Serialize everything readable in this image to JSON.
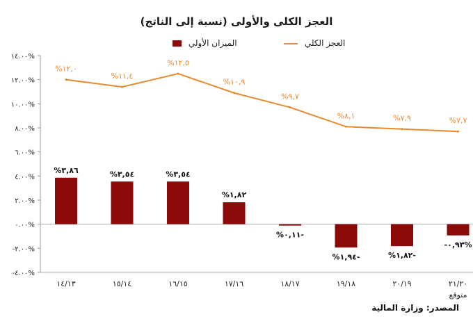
{
  "chart_data": {
    "type": "bar+line",
    "title": "العجز الكلى والأولى (نسبة إلى الناتج)",
    "categories": [
      "١٤/١٣",
      "١٥/١٤",
      "١٦/١٥",
      "١٧/١٦",
      "١٨/١٧",
      "١٩/١٨",
      "٢٠/١٩",
      "٢١/٢٠"
    ],
    "category_note": "متوقع",
    "series": [
      {
        "name": "العجز الكلي",
        "type": "line",
        "color": "#E8892E",
        "values": [
          12.0,
          11.4,
          12.5,
          10.9,
          9.7,
          8.1,
          7.9,
          7.7
        ],
        "labels": [
          "%١٢,٠",
          "%١١,٤",
          "%١٢,٥",
          "%١٠,٩",
          "%٩,٧",
          "%٨,١",
          "%٧,٩",
          "%٧,٧"
        ]
      },
      {
        "name": "الميزان الأولي",
        "type": "bar",
        "color": "#8B0A0A",
        "values": [
          3.86,
          3.54,
          3.54,
          1.82,
          -0.11,
          -1.94,
          -1.82,
          -0.93
        ],
        "labels": [
          "%٣,٨٦",
          "%٣,٥٤",
          "%٣,٥٤",
          "%١,٨٢",
          "%٠,١١-",
          "%١,٩٤-",
          "%١,٨٢-",
          "-٠,٩٣%"
        ]
      }
    ],
    "yticks": [
      14,
      12,
      10,
      8,
      6,
      4,
      2,
      0,
      -2,
      -4
    ],
    "ytick_labels": [
      "١٤.٠٠%",
      "١٢.٠٠%",
      "١٠.٠٠%",
      "٨.٠٠%",
      "٦.٠٠%",
      "٤.٠٠%",
      "٢.٠٠%",
      "٠.٠٠%",
      "-٢.٠٠%",
      "-٤.٠٠%"
    ],
    "ylim": [
      -4,
      14
    ],
    "grid": false,
    "legend_position": "top"
  },
  "source": "المصدر: وزارة المالية"
}
